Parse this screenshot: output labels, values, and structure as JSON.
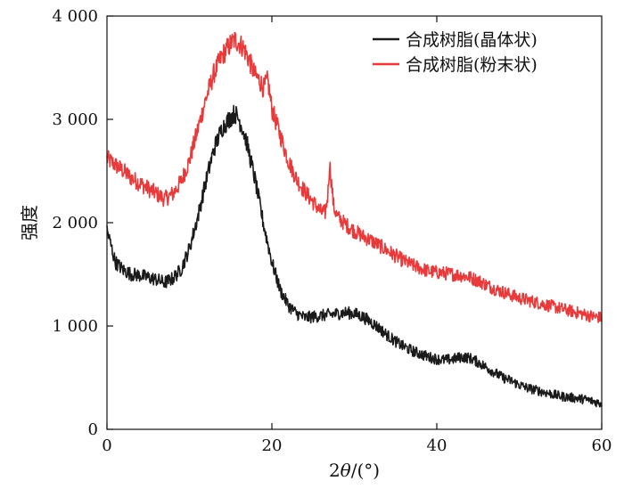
{
  "chart_data": {
    "type": "line",
    "title": "",
    "xlabel": "2θ/(°)",
    "ylabel": "强度",
    "xlim": [
      0,
      60
    ],
    "ylim": [
      0,
      4000
    ],
    "xticks": [
      0,
      20,
      40,
      60
    ],
    "xtick_labels": [
      "0",
      "20",
      "40",
      "60"
    ],
    "yticks": [
      0,
      1000,
      2000,
      3000,
      4000
    ],
    "ytick_labels": [
      "0",
      "1 000",
      "2 000",
      "3 000",
      "4 000"
    ],
    "grid": false,
    "legend_position": "top-right",
    "series": [
      {
        "name": "合成树脂(晶体状)",
        "color": "#1a1a1a",
        "x": [
          0,
          1,
          2,
          3,
          4,
          5,
          6,
          7,
          8,
          9,
          10,
          11,
          12,
          13,
          14,
          15,
          15.5,
          16,
          16.5,
          17,
          18,
          19,
          20,
          21,
          22,
          23,
          24,
          25,
          26,
          27,
          28,
          29,
          30,
          31,
          32,
          33,
          34,
          35,
          36,
          37,
          38,
          39,
          40,
          41,
          42,
          43,
          44,
          45,
          46,
          47,
          48,
          49,
          50,
          51,
          52,
          53,
          54,
          55,
          56,
          57,
          58,
          59,
          60
        ],
        "y": [
          1930,
          1620,
          1540,
          1500,
          1490,
          1470,
          1450,
          1420,
          1460,
          1550,
          1750,
          2050,
          2400,
          2720,
          2920,
          3020,
          3060,
          3000,
          2900,
          2760,
          2400,
          1980,
          1620,
          1350,
          1200,
          1120,
          1080,
          1090,
          1100,
          1110,
          1120,
          1130,
          1120,
          1090,
          1040,
          980,
          910,
          850,
          800,
          760,
          730,
          700,
          680,
          670,
          680,
          700,
          690,
          650,
          600,
          550,
          500,
          470,
          430,
          400,
          380,
          360,
          340,
          320,
          310,
          300,
          290,
          270,
          250
        ]
      },
      {
        "name": "合成树脂(粉末状)",
        "color": "#e83a3a",
        "x": [
          0,
          1,
          2,
          3,
          4,
          5,
          6,
          7,
          8,
          9,
          10,
          11,
          12,
          13,
          14,
          15,
          15.5,
          16,
          16.5,
          17,
          18,
          18.5,
          19,
          19.5,
          20,
          21,
          22,
          23,
          24,
          25,
          26,
          26.5,
          26.8,
          27,
          27.5,
          28,
          29,
          30,
          31,
          32,
          33,
          34,
          35,
          36,
          37,
          38,
          39,
          40,
          41,
          42,
          43,
          44,
          45,
          46,
          47,
          48,
          49,
          50,
          51,
          52,
          53,
          54,
          55,
          56,
          57,
          58,
          59,
          60
        ],
        "y": [
          2620,
          2560,
          2500,
          2430,
          2380,
          2330,
          2280,
          2230,
          2280,
          2400,
          2600,
          2900,
          3200,
          3450,
          3620,
          3730,
          3770,
          3740,
          3700,
          3620,
          3420,
          3380,
          3300,
          3380,
          3100,
          2850,
          2600,
          2420,
          2300,
          2200,
          2100,
          2100,
          2280,
          2580,
          2150,
          2050,
          1980,
          1920,
          1870,
          1830,
          1780,
          1730,
          1680,
          1630,
          1590,
          1560,
          1530,
          1520,
          1510,
          1500,
          1490,
          1470,
          1440,
          1400,
          1360,
          1330,
          1300,
          1270,
          1250,
          1230,
          1210,
          1190,
          1170,
          1150,
          1130,
          1110,
          1090,
          1080
        ]
      }
    ]
  }
}
